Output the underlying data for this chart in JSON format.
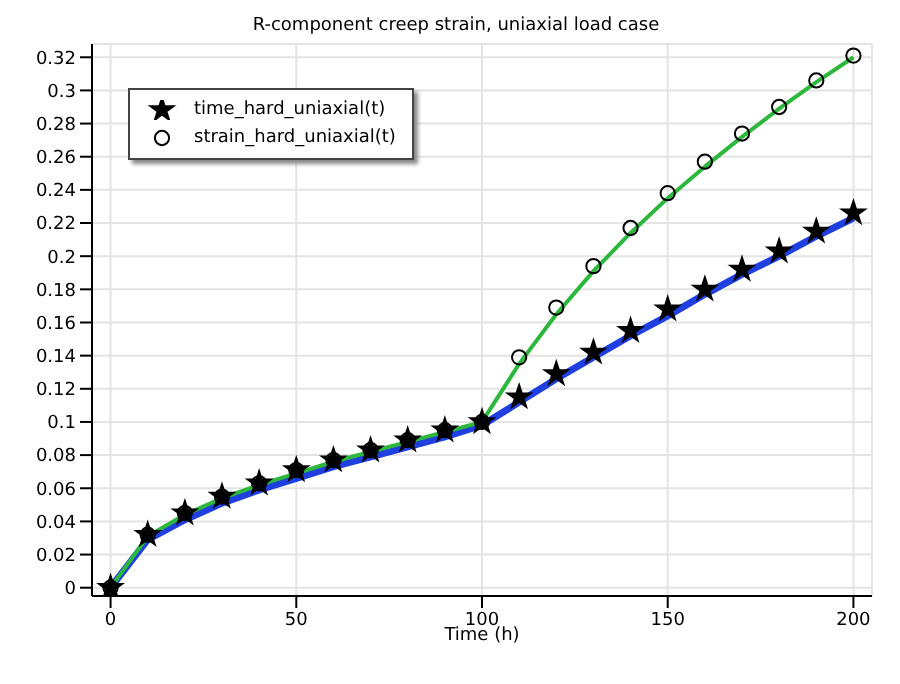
{
  "chart_data": {
    "type": "line",
    "title": "R-component creep strain, uniaxial load case",
    "xlabel": "Time (h)",
    "xlim": [
      -5,
      205
    ],
    "xticks": [
      0,
      50,
      100,
      150,
      200
    ],
    "ylim": [
      -0.005,
      0.328
    ],
    "yticks": [
      0,
      0.02,
      0.04,
      0.06,
      0.08,
      0.1,
      0.12,
      0.14,
      0.16,
      0.18,
      0.2,
      0.22,
      0.24,
      0.26,
      0.28,
      0.3,
      0.32
    ],
    "grid": true,
    "legend": "top left",
    "line_style": "solid",
    "marker": "none",
    "series": [
      {
        "color": "#1f3fe0",
        "x": [
          0,
          10,
          20,
          30,
          40,
          50,
          60,
          70,
          80,
          90,
          100,
          110,
          120,
          130,
          140,
          150,
          160,
          170,
          180,
          190,
          200
        ],
        "values": [
          0,
          0.029,
          0.041,
          0.051,
          0.059,
          0.066,
          0.073,
          0.079,
          0.085,
          0.091,
          0.098,
          0.112,
          0.126,
          0.139,
          0.152,
          0.164,
          0.177,
          0.189,
          0.2,
          0.212,
          0.223
        ]
      },
      {
        "color": "#2db83d",
        "x": [
          0,
          10,
          20,
          30,
          40,
          50,
          60,
          70,
          80,
          90,
          100,
          110,
          120,
          130,
          140,
          150,
          160,
          170,
          180,
          190,
          200
        ],
        "values": [
          0,
          0.031,
          0.044,
          0.054,
          0.062,
          0.069,
          0.076,
          0.082,
          0.088,
          0.094,
          0.1,
          0.135,
          0.165,
          0.191,
          0.214,
          0.235,
          0.254,
          0.272,
          0.289,
          0.305,
          0.32
        ]
      },
      {
        "type": "scatter",
        "name": "time_hard_uniaxial(t)",
        "color": "#000000",
        "marker": "star",
        "x": [
          0,
          10,
          20,
          30,
          40,
          50,
          60,
          70,
          80,
          90,
          100,
          110,
          120,
          130,
          140,
          150,
          160,
          170,
          180,
          190,
          200
        ],
        "values": [
          0,
          0.032,
          0.045,
          0.055,
          0.063,
          0.071,
          0.077,
          0.083,
          0.089,
          0.095,
          0.1,
          0.115,
          0.129,
          0.142,
          0.155,
          0.168,
          0.18,
          0.192,
          0.203,
          0.215,
          0.226
        ]
      },
      {
        "type": "scatter",
        "name": "strain_hard_uniaxial(t)",
        "color": "#000000",
        "marker": "circle",
        "x": [
          0,
          10,
          20,
          30,
          40,
          50,
          60,
          70,
          80,
          90,
          100,
          110,
          120,
          130,
          140,
          150,
          160,
          170,
          180,
          190,
          200
        ],
        "values": [
          0,
          0.032,
          0.045,
          0.055,
          0.063,
          0.071,
          0.077,
          0.083,
          0.089,
          0.095,
          0.1,
          0.139,
          0.169,
          0.194,
          0.217,
          0.238,
          0.257,
          0.274,
          0.29,
          0.306,
          0.321
        ]
      }
    ]
  }
}
